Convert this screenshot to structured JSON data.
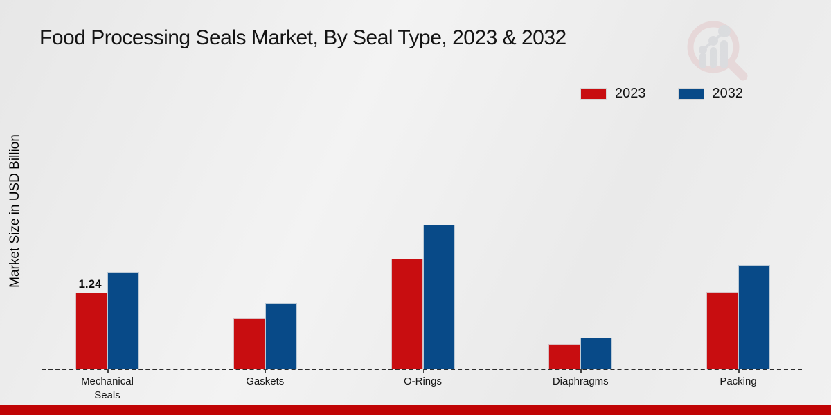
{
  "page": {
    "title": "Food Processing Seals Market, By Seal Type, 2023 & 2032"
  },
  "y_axis": {
    "label": "Market Size in USD Billion"
  },
  "legend": [
    {
      "label": "2023",
      "color": "#c80d10"
    },
    {
      "label": "2032",
      "color": "#084a88"
    }
  ],
  "chart_data": {
    "type": "bar",
    "title": "Food Processing Seals Market, By Seal Type, 2023 & 2032",
    "categories": [
      "Mechanical Seals",
      "Gaskets",
      "O-Rings",
      "Diaphragms",
      "Packing"
    ],
    "series": [
      {
        "name": "2023",
        "color": "#c80d10",
        "values": [
          1.24,
          0.83,
          1.79,
          0.4,
          1.25
        ]
      },
      {
        "name": "2032",
        "color": "#084a88",
        "values": [
          1.58,
          1.07,
          2.33,
          0.51,
          1.69
        ]
      }
    ],
    "annotations": [
      {
        "category_index": 0,
        "series_index": 0,
        "text": "1.24"
      }
    ],
    "xlabel": "",
    "ylabel": "Market Size in USD Billion",
    "ylim": [
      0,
      2.6
    ],
    "grid": false,
    "legend_position": "top-right",
    "baseline_style": "dashed",
    "unit": "USD Billion"
  },
  "branding": {
    "logo": "magnifier-bar-chart-logo",
    "footer_bar_color": "#c00405"
  }
}
